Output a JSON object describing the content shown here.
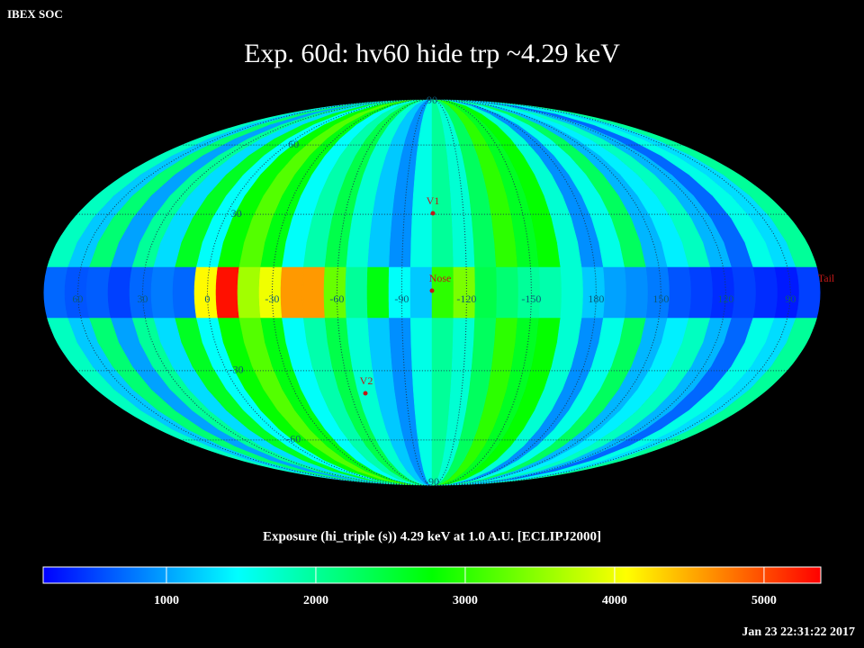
{
  "header": {
    "corner": "IBEX SOC",
    "timestamp": "Jan 23 22:31:22 2017"
  },
  "chart_data": {
    "type": "mollweide",
    "title": "Exp.   60d: hv60 hide trp ~4.29 keV",
    "colorbar_label": "Exposure (hi_triple (s))  4.29 keV at 1.0 A.U. [ECLIPJ2000]",
    "values": [
      1800,
      1200,
      2200,
      1000,
      2000,
      1300,
      2600,
      1500,
      2800,
      3200,
      2700,
      1500,
      1900,
      2400,
      1700,
      1200,
      900,
      1600,
      2000,
      1700,
      2300,
      3000,
      2600,
      2800,
      1700,
      900,
      1600,
      2300,
      1100,
      1400,
      1800,
      1100,
      700,
      1600,
      1300,
      2000
    ],
    "band_values": [
      700,
      600,
      650,
      500,
      700,
      800,
      700,
      4100,
      5300,
      3600,
      4000,
      4600,
      4600,
      3300,
      2000,
      2700,
      1500,
      1200,
      3000,
      3400,
      2400,
      2200,
      2000,
      1900,
      1700,
      1200,
      1000,
      900,
      800,
      600,
      500,
      400,
      500,
      400,
      300,
      500
    ],
    "lon_center": -104,
    "lon_ticks": [
      60,
      30,
      0,
      -30,
      -60,
      -90,
      -120,
      -150,
      180,
      150,
      120,
      90
    ],
    "lat_ticks": [
      90,
      60,
      30,
      -30,
      -60,
      -90
    ],
    "markers": [
      "V1",
      "Nose",
      "V2",
      "Tail"
    ],
    "clim": [
      175,
      5380
    ],
    "cticks": [
      1000,
      2000,
      3000,
      4000,
      5000
    ],
    "colormap": [
      "#0000ff",
      "#0080ff",
      "#00ffff",
      "#00ff80",
      "#00ff00",
      "#80ff00",
      "#ffff00",
      "#ff8000",
      "#ff0000"
    ],
    "grid": true
  }
}
